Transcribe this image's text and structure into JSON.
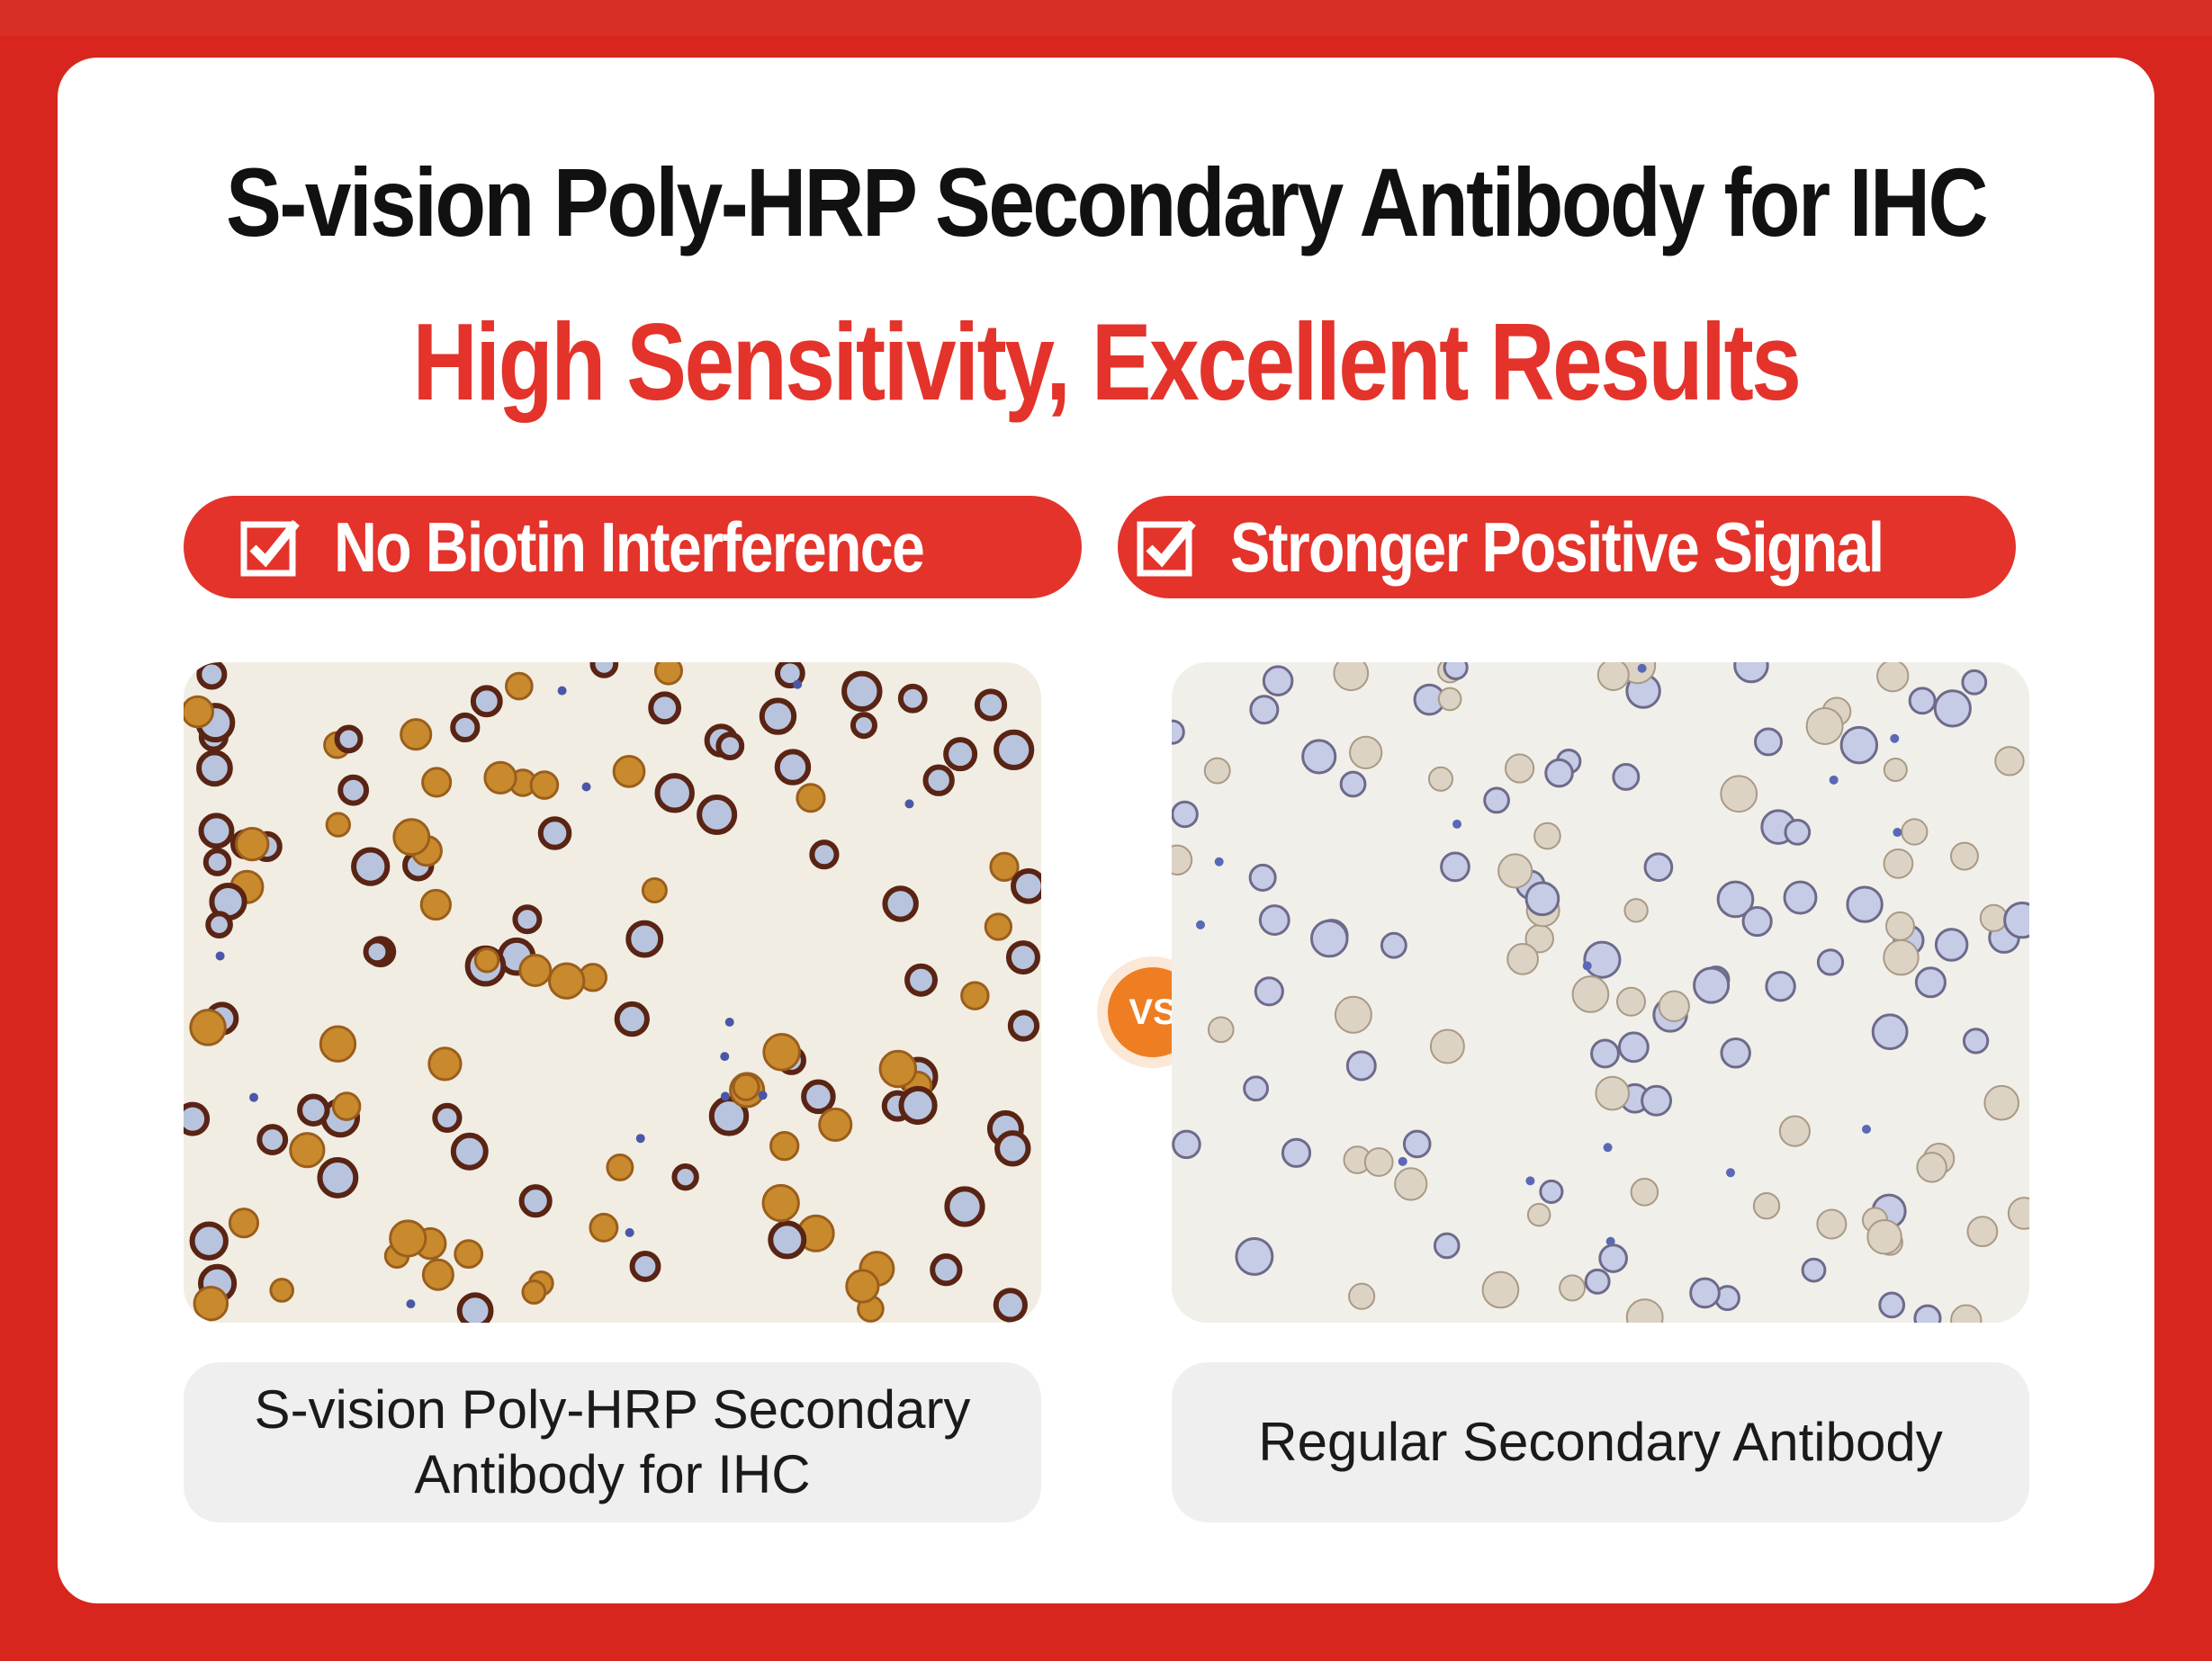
{
  "header": {
    "title": "S-vision Poly-HRP Secondary Antibody for IHC",
    "subtitle": "High Sensitivity, Excellent Results"
  },
  "features": [
    {
      "label": "No Biotin Interference",
      "icon": "checkbox-icon"
    },
    {
      "label": "Stronger Positive Signal",
      "icon": "checkbox-icon"
    }
  ],
  "comparison": {
    "vs_label": "VS",
    "left_caption": "S-vision Poly-HRP Secondary Antibody for IHC",
    "right_caption": "Regular Secondary Antibody"
  },
  "colors": {
    "brand_red": "#e3332b",
    "background_red": "#d8261e",
    "vs_orange": "#ef7d22",
    "strong_stain": "#6b2f1a",
    "weak_stain": "#8c86b8"
  }
}
